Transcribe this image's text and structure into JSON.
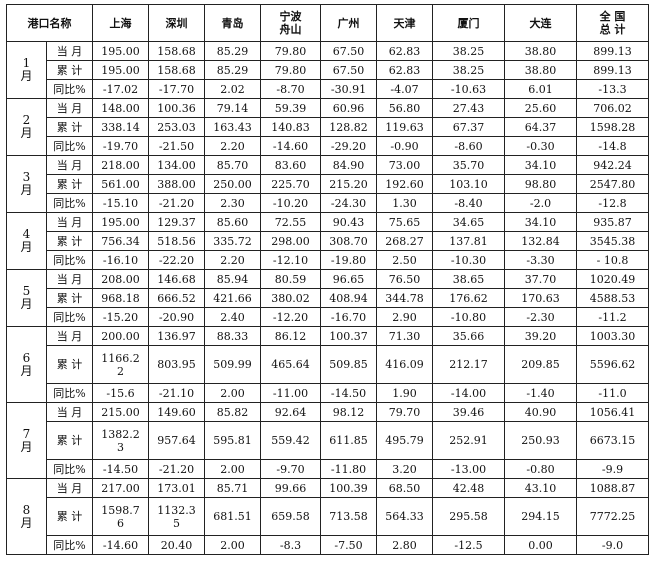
{
  "table": {
    "headers": [
      "港口名称",
      "上海",
      "深圳",
      "青岛",
      "宁波\n舟山",
      "广州",
      "天津",
      "厦门",
      "大连",
      "全 国\n总 计"
    ],
    "rows": [
      {
        "month": "1\n月",
        "metric": "当 月",
        "values": [
          "195.00",
          "158.68",
          "85.29",
          "79.80",
          "67.50",
          "62.83",
          "38.25",
          "38.80",
          "899.13"
        ]
      },
      {
        "month": "",
        "metric": "累 计",
        "values": [
          "195.00",
          "158.68",
          "85.29",
          "79.80",
          "67.50",
          "62.83",
          "38.25",
          "38.80",
          "899.13"
        ]
      },
      {
        "month": "",
        "metric": "同比%",
        "values": [
          "-17.02",
          "-17.70",
          "2.02",
          "-8.70",
          "-30.91",
          "-4.07",
          "-10.63",
          "6.01",
          "-13.3"
        ]
      },
      {
        "month": "2\n月",
        "metric": "当 月",
        "values": [
          "148.00",
          "100.36",
          "79.14",
          "59.39",
          "60.96",
          "56.80",
          "27.43",
          "25.60",
          "706.02"
        ]
      },
      {
        "month": "",
        "metric": "累 计",
        "values": [
          "338.14",
          "253.03",
          "163.43",
          "140.83",
          "128.82",
          "119.63",
          "67.37",
          "64.37",
          "1598.28"
        ]
      },
      {
        "month": "",
        "metric": "同比%",
        "values": [
          "-19.70",
          "-21.50",
          "2.20",
          "-14.60",
          "-29.20",
          "-0.90",
          "-8.60",
          "-0.30",
          "-14.8"
        ]
      },
      {
        "month": "3\n月",
        "metric": "当 月",
        "values": [
          "218.00",
          "134.00",
          "85.70",
          "83.60",
          "84.90",
          "73.00",
          "35.70",
          "34.10",
          "942.24"
        ]
      },
      {
        "month": "",
        "metric": "累 计",
        "values": [
          "561.00",
          "388.00",
          "250.00",
          "225.70",
          "215.20",
          "192.60",
          "103.10",
          "98.80",
          "2547.80"
        ]
      },
      {
        "month": "",
        "metric": "同比%",
        "values": [
          "-15.10",
          "-21.20",
          "2.30",
          "-10.20",
          "-24.30",
          "1.30",
          "-8.40",
          "-2.0",
          "-12.8"
        ]
      },
      {
        "month": "4\n月",
        "metric": "当 月",
        "values": [
          "195.00",
          "129.37",
          "85.60",
          "72.55",
          "90.43",
          "75.65",
          "34.65",
          "34.10",
          "935.87"
        ]
      },
      {
        "month": "",
        "metric": "累 计",
        "values": [
          "756.34",
          "518.56",
          "335.72",
          "298.00",
          "308.70",
          "268.27",
          "137.81",
          "132.84",
          "3545.38"
        ]
      },
      {
        "month": "",
        "metric": "同比%",
        "values": [
          "-16.10",
          "-22.20",
          "2.20",
          "-12.10",
          "-19.80",
          "2.50",
          "-10.30",
          "-3.30",
          "- 10.8"
        ]
      },
      {
        "month": "5\n月",
        "metric": "当 月",
        "values": [
          "208.00",
          "146.68",
          "85.94",
          "80.59",
          "96.65",
          "76.50",
          "38.65",
          "37.70",
          "1020.49"
        ]
      },
      {
        "month": "",
        "metric": "累 计",
        "values": [
          "968.18",
          "666.52",
          "421.66",
          "380.02",
          "408.94",
          "344.78",
          "176.62",
          "170.63",
          "4588.53"
        ]
      },
      {
        "month": "",
        "metric": "同比%",
        "values": [
          "-15.20",
          "-20.90",
          "2.40",
          "-12.20",
          "-16.70",
          "2.90",
          "-10.80",
          "-2.30",
          "-11.2"
        ]
      },
      {
        "month": "6\n月",
        "metric": "当 月",
        "values": [
          "200.00",
          "136.97",
          "88.33",
          "86.12",
          "100.37",
          "71.30",
          "35.66",
          "39.20",
          "1003.30"
        ]
      },
      {
        "month": "",
        "metric": "累 计",
        "values": [
          "1166.2\n2",
          "803.95",
          "509.99",
          "465.64",
          "509.85",
          "416.09",
          "212.17",
          "209.85",
          "5596.62"
        ],
        "tall": true
      },
      {
        "month": "",
        "metric": "同比%",
        "values": [
          "-15.6",
          "-21.10",
          "2.00",
          "-11.00",
          "-14.50",
          "1.90",
          "-14.00",
          "-1.40",
          "-11.0"
        ]
      },
      {
        "month": "7\n月",
        "metric": "当 月",
        "values": [
          "215.00",
          "149.60",
          "85.82",
          "92.64",
          "98.12",
          "79.70",
          "39.46",
          "40.90",
          "1056.41"
        ]
      },
      {
        "month": "",
        "metric": "累 计",
        "values": [
          "1382.2\n3",
          "957.64",
          "595.81",
          "559.42",
          "611.85",
          "495.79",
          "252.91",
          "250.93",
          "6673.15"
        ],
        "tall": true
      },
      {
        "month": "",
        "metric": "同比%",
        "values": [
          "-14.50",
          "-21.20",
          "2.00",
          "-9.70",
          "-11.80",
          "3.20",
          "-13.00",
          "-0.80",
          "-9.9"
        ]
      },
      {
        "month": "8\n月",
        "metric": "当 月",
        "values": [
          "217.00",
          "173.01",
          "85.71",
          "99.66",
          "100.39",
          "68.50",
          "42.48",
          "43.10",
          "1088.87"
        ]
      },
      {
        "month": "",
        "metric": "累 计",
        "values": [
          "1598.7\n6",
          "1132.3\n5",
          "681.51",
          "659.58",
          "713.58",
          "564.33",
          "295.58",
          "294.15",
          "7772.25"
        ],
        "tall": true
      },
      {
        "month": "",
        "metric": "同比%",
        "values": [
          "-14.60",
          "20.40",
          "2.00",
          "-8.3",
          "-7.50",
          "2.80",
          "-12.5",
          "0.00",
          "-9.0"
        ]
      }
    ]
  }
}
